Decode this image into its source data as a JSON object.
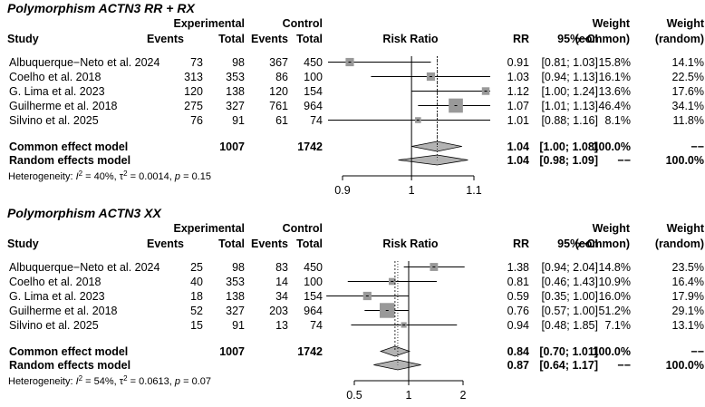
{
  "headers": {
    "study": "Study",
    "experimental": "Experimental",
    "control": "Control",
    "events": "Events",
    "total": "Total",
    "plot_title": "Risk Ratio",
    "rr": "RR",
    "ci": "95%−CI",
    "weight": "Weight",
    "weight_common": "(common)",
    "weight_random": "(random)"
  },
  "colors": {
    "square": "#999999",
    "diamond": "#b3b3b3",
    "line": "#000000"
  },
  "chart_data": [
    {
      "type": "forest",
      "title": "Polymorphism ACTN3 RR + RX",
      "scale": "log",
      "xlim": [
        0.85,
        1.15
      ],
      "ticks": [
        {
          "value": 0.9,
          "label": "0.9"
        },
        {
          "value": 1,
          "label": "1"
        },
        {
          "value": 1.1,
          "label": "1.1"
        }
      ],
      "null_value": 1,
      "studies": [
        {
          "study": "Albuquerque−Neto et al. 2024",
          "e_events": "73",
          "e_total": "98",
          "c_events": "367",
          "c_total": "450",
          "rr": 0.91,
          "lo": 0.81,
          "hi": 1.03,
          "rr_text": "0.91",
          "ci_text": "[0.81; 1.03]",
          "w_common": "15.8%",
          "w_random": "14.1%",
          "weight": 15.8
        },
        {
          "study": "Coelho et al. 2018",
          "e_events": "313",
          "e_total": "353",
          "c_events": "86",
          "c_total": "100",
          "rr": 1.03,
          "lo": 0.94,
          "hi": 1.13,
          "rr_text": "1.03",
          "ci_text": "[0.94; 1.13]",
          "w_common": "16.1%",
          "w_random": "22.5%",
          "weight": 16.1
        },
        {
          "study": "G. Lima et al. 2023",
          "e_events": "120",
          "e_total": "138",
          "c_events": "120",
          "c_total": "154",
          "rr": 1.12,
          "lo": 1.0,
          "hi": 1.24,
          "rr_text": "1.12",
          "ci_text": "[1.00; 1.24]",
          "w_common": "13.6%",
          "w_random": "17.6%",
          "weight": 13.6
        },
        {
          "study": "Guilherme et al. 2018",
          "e_events": "275",
          "e_total": "327",
          "c_events": "761",
          "c_total": "964",
          "rr": 1.07,
          "lo": 1.01,
          "hi": 1.13,
          "rr_text": "1.07",
          "ci_text": "[1.01; 1.13]",
          "w_common": "46.4%",
          "w_random": "34.1%",
          "weight": 46.4
        },
        {
          "study": "Silvino et al. 2025",
          "e_events": "76",
          "e_total": "91",
          "c_events": "61",
          "c_total": "74",
          "rr": 1.01,
          "lo": 0.88,
          "hi": 1.16,
          "rr_text": "1.01",
          "ci_text": "[0.88; 1.16]",
          "w_common": "8.1%",
          "w_random": "11.8%",
          "weight": 8.1
        }
      ],
      "common": {
        "label": "Common effect model",
        "e_total": "1007",
        "c_total": "1742",
        "rr": 1.04,
        "lo": 1.0,
        "hi": 1.08,
        "rr_text": "1.04",
        "ci_text": "[1.00; 1.08]",
        "w_common": "100.0%",
        "w_random": "−−"
      },
      "random": {
        "label": "Random effects model",
        "rr": 1.04,
        "lo": 0.98,
        "hi": 1.09,
        "rr_text": "1.04",
        "ci_text": "[0.98; 1.09]",
        "w_common": "−−",
        "w_random": "100.0%"
      },
      "heterogeneity": {
        "prefix": "Heterogeneity: ",
        "i2_symbol": "I",
        "i2_sup": "2",
        "i2_value": " = 40%, ",
        "tau2_symbol": "τ",
        "tau2_sup": "2",
        "tau2_value": " = 0.0014, ",
        "p_symbol": "p",
        "p_value": " = 0.15"
      }
    },
    {
      "type": "forest",
      "title": "Polymorphism ACTN3 XX",
      "scale": "log",
      "xlim": [
        0.5,
        2.0
      ],
      "ticks": [
        {
          "value": 0.5,
          "label": "0.5"
        },
        {
          "value": 1,
          "label": "1"
        },
        {
          "value": 2,
          "label": "2"
        }
      ],
      "null_value": 1,
      "studies": [
        {
          "study": "Albuquerque−Neto et al. 2024",
          "e_events": "25",
          "e_total": "98",
          "c_events": "83",
          "c_total": "450",
          "rr": 1.38,
          "lo": 0.94,
          "hi": 2.04,
          "rr_text": "1.38",
          "ci_text": "[0.94; 2.04]",
          "w_common": "14.8%",
          "w_random": "23.5%",
          "weight": 14.8
        },
        {
          "study": "Coelho et al. 2018",
          "e_events": "40",
          "e_total": "353",
          "c_events": "14",
          "c_total": "100",
          "rr": 0.81,
          "lo": 0.46,
          "hi": 1.43,
          "rr_text": "0.81",
          "ci_text": "[0.46; 1.43]",
          "w_common": "10.9%",
          "w_random": "16.4%",
          "weight": 10.9
        },
        {
          "study": "G. Lima et al. 2023",
          "e_events": "18",
          "e_total": "138",
          "c_events": "34",
          "c_total": "154",
          "rr": 0.59,
          "lo": 0.35,
          "hi": 1.0,
          "rr_text": "0.59",
          "ci_text": "[0.35; 1.00]",
          "w_common": "16.0%",
          "w_random": "17.9%",
          "weight": 16.0
        },
        {
          "study": "Guilherme et al. 2018",
          "e_events": "52",
          "e_total": "327",
          "c_events": "203",
          "c_total": "964",
          "rr": 0.76,
          "lo": 0.57,
          "hi": 1.0,
          "rr_text": "0.76",
          "ci_text": "[0.57; 1.00]",
          "w_common": "51.2%",
          "w_random": "29.1%",
          "weight": 51.2
        },
        {
          "study": "Silvino et al. 2025",
          "e_events": "15",
          "e_total": "91",
          "c_events": "13",
          "c_total": "74",
          "rr": 0.94,
          "lo": 0.48,
          "hi": 1.85,
          "rr_text": "0.94",
          "ci_text": "[0.48; 1.85]",
          "w_common": "7.1%",
          "w_random": "13.1%",
          "weight": 7.1
        }
      ],
      "common": {
        "label": "Common effect model",
        "e_total": "1007",
        "c_total": "1742",
        "rr": 0.84,
        "lo": 0.7,
        "hi": 1.01,
        "rr_text": "0.84",
        "ci_text": "[0.70; 1.01]",
        "w_common": "100.0%",
        "w_random": "−−"
      },
      "random": {
        "label": "Random effects model",
        "rr": 0.87,
        "lo": 0.64,
        "hi": 1.17,
        "rr_text": "0.87",
        "ci_text": "[0.64; 1.17]",
        "w_common": "−−",
        "w_random": "100.0%"
      },
      "heterogeneity": {
        "prefix": "Heterogeneity: ",
        "i2_symbol": "I",
        "i2_sup": "2",
        "i2_value": " = 54%, ",
        "tau2_symbol": "τ",
        "tau2_sup": "2",
        "tau2_value": " = 0.0613, ",
        "p_symbol": "p",
        "p_value": " = 0.07"
      }
    }
  ]
}
